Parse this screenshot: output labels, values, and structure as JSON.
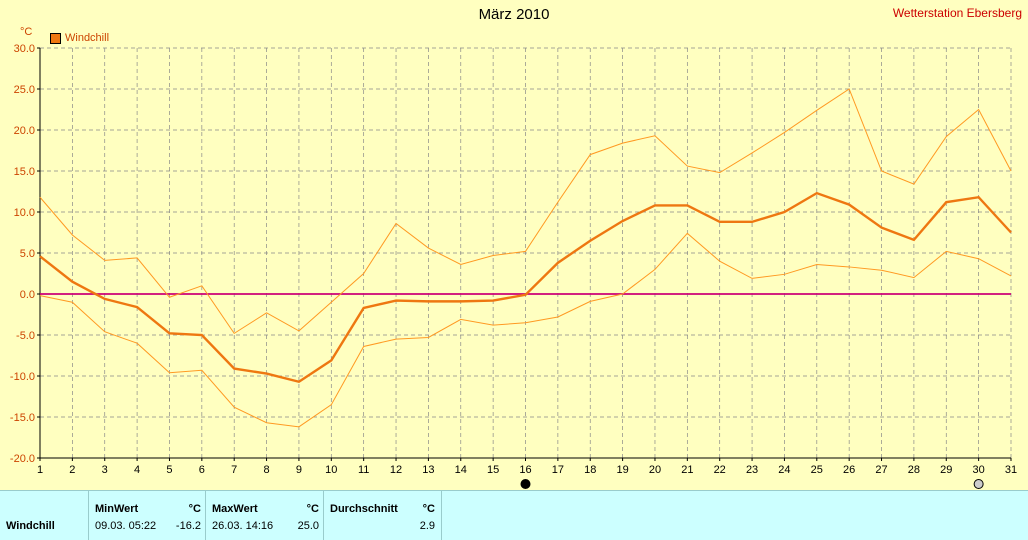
{
  "header": {
    "title": "März 2010",
    "station": "Wetterstation Ebersberg",
    "unit": "°C",
    "legend_label": "Windchill"
  },
  "colors": {
    "background": "#ffffc0",
    "grid": "#888888",
    "main_line": "#ee7711",
    "band_line": "#ff9922",
    "zero_line": "#cc0077",
    "axis_text": "#cc4400",
    "stats_bg": "#ccffff"
  },
  "chart_data": {
    "type": "line",
    "title": "März 2010",
    "ylabel": "°C",
    "xlabel": "",
    "ylim": [
      -20,
      30
    ],
    "xlim": [
      1,
      31
    ],
    "grid": true,
    "legend": "top-left",
    "y_ticks": [
      "30.0",
      "25.0",
      "20.0",
      "15.0",
      "10.0",
      "5.0",
      "0.0",
      "-5.0",
      "-10.0",
      "-15.0",
      "-20.0"
    ],
    "x": [
      1,
      2,
      3,
      4,
      5,
      6,
      7,
      8,
      9,
      10,
      11,
      12,
      13,
      14,
      15,
      16,
      17,
      18,
      19,
      20,
      21,
      22,
      23,
      24,
      25,
      26,
      27,
      28,
      29,
      30,
      31
    ],
    "x_markers": [
      16,
      30
    ],
    "series": [
      {
        "name": "Windchill",
        "role": "mean",
        "values": [
          4.6,
          1.5,
          -0.6,
          -1.6,
          -4.8,
          -5.0,
          -9.1,
          -9.7,
          -10.7,
          -8.1,
          -1.7,
          -0.8,
          -0.9,
          -0.9,
          -0.8,
          -0.1,
          3.8,
          6.5,
          8.9,
          10.8,
          10.8,
          8.8,
          8.8,
          10.0,
          12.3,
          10.9,
          8.1,
          6.6,
          11.2,
          11.8,
          7.5
        ]
      },
      {
        "role": "max",
        "values": [
          11.8,
          7.2,
          4.1,
          4.4,
          -0.4,
          1.0,
          -4.8,
          -2.3,
          -4.5,
          -1.0,
          2.5,
          8.6,
          5.6,
          3.6,
          4.7,
          5.2,
          11.2,
          17.0,
          18.4,
          19.3,
          15.6,
          14.8,
          17.2,
          19.7,
          22.4,
          25.0,
          15.0,
          13.4,
          19.2,
          22.5,
          15.0
        ]
      },
      {
        "role": "min",
        "values": [
          -0.2,
          -1.0,
          -4.6,
          -6.0,
          -9.6,
          -9.3,
          -13.8,
          -15.7,
          -16.2,
          -13.5,
          -6.4,
          -5.5,
          -5.3,
          -3.1,
          -3.8,
          -3.5,
          -2.8,
          -0.9,
          0.0,
          3.0,
          7.4,
          4.0,
          1.9,
          2.4,
          3.6,
          3.3,
          2.9,
          2.0,
          5.2,
          4.3,
          2.2
        ]
      }
    ]
  },
  "stats": {
    "row_label": "Windchill",
    "min": {
      "head": "MinWert",
      "unit": "°C",
      "datetime": "09.03.  05:22",
      "value": "-16.2"
    },
    "max": {
      "head": "MaxWert",
      "unit": "°C",
      "datetime": "26.03.  14:16",
      "value": "25.0"
    },
    "avg": {
      "head": "Durchschnitt",
      "unit": "°C",
      "value": "2.9"
    }
  }
}
